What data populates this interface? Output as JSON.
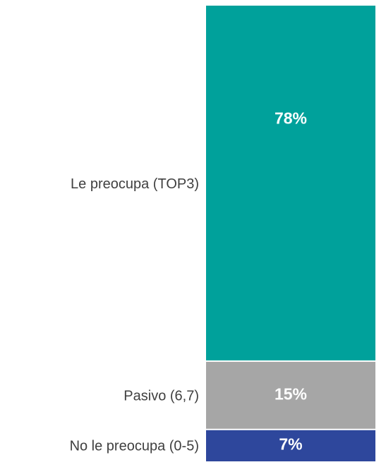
{
  "chart_data": {
    "type": "stacked_bar",
    "series": [
      {
        "name": "No le preocupa (0-5)",
        "color": "#2e479c",
        "values": [
          7
        ],
        "value_labels": [
          "7%"
        ]
      },
      {
        "name": "Pasivo (6,7)",
        "color": "#a6a6a6",
        "values": [
          15
        ],
        "value_labels": [
          "15%"
        ]
      },
      {
        "name": "Le preocupa (TOP3)",
        "color": "#00a19b",
        "values": [
          78
        ],
        "value_labels": [
          "78%"
        ]
      }
    ],
    "ylim": [
      0,
      100
    ]
  }
}
